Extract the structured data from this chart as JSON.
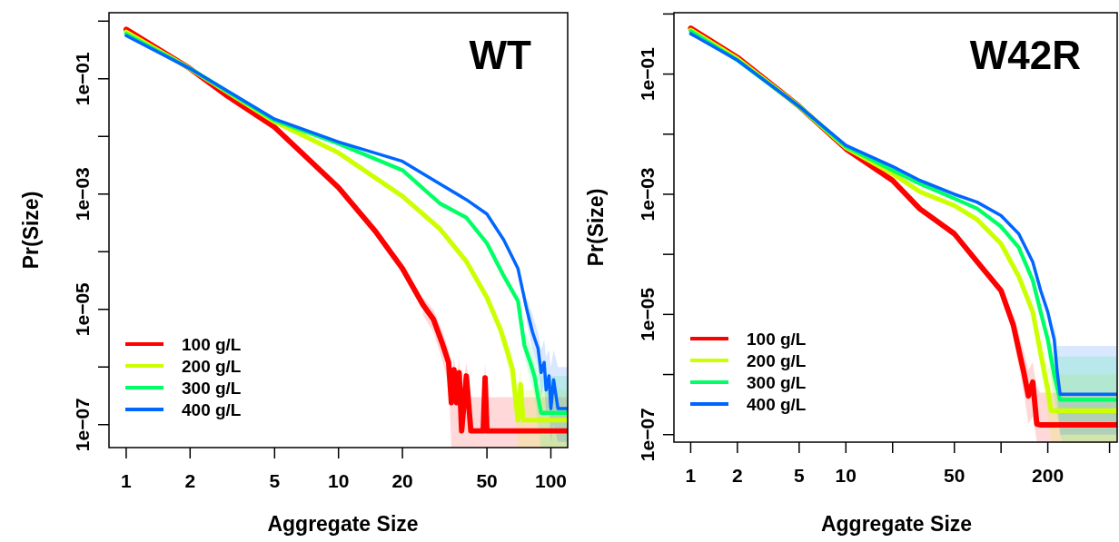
{
  "chart_data": [
    {
      "type": "line",
      "title": "WT",
      "xlabel": "Aggregate Size",
      "ylabel": "Pr(Size)",
      "log": "xy",
      "legend": "bottom left",
      "xlim": [
        0.83,
        120
      ],
      "ylim": [
        4e-08,
        1.4
      ],
      "xticks": [
        1,
        2,
        5,
        10,
        20,
        50,
        100
      ],
      "yticks": [
        {
          "value": 1,
          "label": null
        },
        {
          "value": 0.1,
          "label": "1e−01"
        },
        {
          "value": 0.01,
          "label": null
        },
        {
          "value": 0.001,
          "label": "1e−03"
        },
        {
          "value": 0.0001,
          "label": null
        },
        {
          "value": 1e-05,
          "label": "1e−05"
        },
        {
          "value": 1e-06,
          "label": null
        },
        {
          "value": 1e-07,
          "label": "1e−07"
        }
      ],
      "series": [
        {
          "name": "100 g/L",
          "color": "#ff0000",
          "x": [
            1,
            2,
            3,
            5,
            7,
            10,
            15,
            20,
            25,
            28,
            31,
            33,
            34,
            35,
            36,
            37,
            38,
            40,
            42,
            48,
            49,
            50,
            120
          ],
          "values": [
            0.72,
            0.15,
            0.05,
            0.0145,
            0.0045,
            0.0013,
            0.00022,
            5.1e-05,
            1.2e-05,
            6.7e-06,
            2.4e-06,
            1.2e-06,
            2.4e-07,
            9e-07,
            2.4e-07,
            8e-07,
            7.8e-08,
            7e-07,
            7.8e-08,
            7.8e-08,
            6.5e-07,
            7.8e-08,
            7.8e-08
          ],
          "lower": [
            null,
            null,
            null,
            null,
            null,
            null,
            null,
            null,
            8e-06,
            4e-06,
            1.2e-06,
            5e-07,
            4e-08,
            4e-08,
            4e-08,
            4e-08,
            4e-08,
            4e-08,
            4e-08,
            4e-08,
            4e-08,
            4e-08,
            4e-08
          ],
          "upper": [
            null,
            null,
            null,
            null,
            null,
            null,
            null,
            null,
            1.6e-05,
            1e-05,
            4e-06,
            2e-06,
            6e-07,
            1.5e-06,
            6e-07,
            1.4e-06,
            3e-07,
            1.2e-06,
            3e-07,
            3e-07,
            1.2e-06,
            3e-07,
            3e-07
          ]
        },
        {
          "name": "200 g/L",
          "color": "#ccff00",
          "x": [
            1,
            2,
            5,
            10,
            20,
            30,
            40,
            50,
            58,
            62,
            66,
            68,
            70,
            72,
            74,
            76,
            120
          ],
          "values": [
            0.65,
            0.15,
            0.018,
            0.0052,
            0.00092,
            0.00025,
            6.8e-05,
            1.6e-05,
            4.4e-06,
            2e-06,
            9e-07,
            3e-07,
            1.2e-07,
            5e-07,
            1.2e-07,
            1.2e-07,
            1.2e-07
          ],
          "lower": [
            null,
            null,
            null,
            null,
            null,
            null,
            null,
            null,
            3e-06,
            1.2e-06,
            4e-07,
            1e-07,
            4e-08,
            4e-08,
            4e-08,
            4e-08,
            4e-08
          ],
          "upper": [
            null,
            null,
            null,
            null,
            null,
            null,
            null,
            null,
            6e-06,
            3e-06,
            1.6e-06,
            8e-07,
            5e-07,
            1e-06,
            4e-07,
            4e-07,
            4e-07
          ]
        },
        {
          "name": "300 g/L",
          "color": "#00ff66",
          "x": [
            1,
            2,
            5,
            10,
            20,
            30,
            40,
            50,
            60,
            70,
            75,
            80,
            84,
            87,
            90,
            95,
            120
          ],
          "values": [
            0.6,
            0.15,
            0.019,
            0.0075,
            0.0026,
            0.00069,
            0.00039,
            0.00014,
            3.8e-05,
            1.4e-05,
            2.4e-06,
            1.2e-06,
            6.6e-07,
            3e-07,
            1.6e-07,
            1.6e-07,
            1.6e-07
          ],
          "lower": [
            null,
            null,
            null,
            null,
            null,
            null,
            null,
            null,
            null,
            1e-05,
            1.5e-06,
            6e-07,
            3e-07,
            1e-07,
            4e-08,
            4e-08,
            4e-08
          ],
          "upper": [
            null,
            null,
            null,
            null,
            null,
            null,
            null,
            null,
            null,
            2e-05,
            4e-06,
            2.5e-06,
            1.5e-06,
            1e-06,
            7e-07,
            7e-07,
            7e-07
          ]
        },
        {
          "name": "400 g/L",
          "color": "#0066ff",
          "x": [
            1,
            2,
            5,
            10,
            20,
            30,
            40,
            50,
            60,
            70,
            77,
            82,
            87,
            90,
            93,
            95,
            98,
            100,
            103,
            108,
            120
          ],
          "values": [
            0.56,
            0.15,
            0.02,
            0.008,
            0.0037,
            0.0015,
            0.0008,
            0.00045,
            0.00016,
            5.1e-05,
            1e-05,
            4e-06,
            2.1e-06,
            8e-07,
            1.2e-06,
            4e-07,
            7e-07,
            1.9e-07,
            6e-07,
            1.9e-07,
            1.9e-07
          ],
          "lower": [
            null,
            null,
            null,
            null,
            null,
            null,
            null,
            null,
            null,
            null,
            6e-06,
            2e-06,
            1e-06,
            3e-07,
            5e-07,
            1.5e-07,
            2e-07,
            5e-08,
            1e-07,
            5e-08,
            5e-08
          ],
          "upper": [
            null,
            null,
            null,
            null,
            null,
            null,
            null,
            null,
            null,
            null,
            1.6e-05,
            8e-06,
            4e-06,
            2e-06,
            3e-06,
            1.5e-06,
            2e-06,
            1e-06,
            2e-06,
            1e-06,
            1e-06
          ]
        }
      ]
    },
    {
      "type": "line",
      "title": "W42R",
      "xlabel": "Aggregate Size",
      "ylabel": "Pr(Size)",
      "log": "xy",
      "legend": "bottom left",
      "xlim": [
        0.78,
        560
      ],
      "ylim": [
        7.5e-08,
        1.05
      ],
      "xticks": [
        1,
        2,
        5,
        10,
        {
          "value": 20,
          "label": null
        },
        50,
        {
          "value": 100,
          "label": null
        },
        200,
        {
          "value": 500,
          "label": null
        }
      ],
      "yticks": [
        {
          "value": 1,
          "label": null
        },
        {
          "value": 0.1,
          "label": "1e−01"
        },
        {
          "value": 0.01,
          "label": null
        },
        {
          "value": 0.001,
          "label": "1e−03"
        },
        {
          "value": 0.0001,
          "label": null
        },
        {
          "value": 1e-05,
          "label": "1e−05"
        },
        {
          "value": 1e-06,
          "label": null
        },
        {
          "value": 1e-07,
          "label": "1e−07"
        }
      ],
      "series": [
        {
          "name": "100 g/L",
          "color": "#ff0000",
          "x": [
            1,
            2,
            5,
            10,
            20,
            30,
            50,
            70,
            100,
            120,
            140,
            150,
            160,
            170,
            180,
            560
          ],
          "values": [
            0.58,
            0.19,
            0.029,
            0.0057,
            0.0017,
            0.00057,
            0.00022,
            7.6e-05,
            2.5e-05,
            6.6e-06,
            1.1e-06,
            4.4e-07,
            7.5e-07,
            1.5e-07,
            1.45e-07,
            1.45e-07
          ],
          "lower": [
            null,
            null,
            null,
            null,
            null,
            null,
            null,
            null,
            null,
            4e-06,
            5e-07,
            1.5e-07,
            2e-07,
            7.5e-08,
            7.5e-08,
            7.5e-08
          ],
          "upper": [
            null,
            null,
            null,
            null,
            null,
            null,
            null,
            null,
            null,
            1e-05,
            2.5e-06,
            1.2e-06,
            1.6e-06,
            6e-07,
            5e-07,
            5e-07
          ]
        },
        {
          "name": "200 g/L",
          "color": "#ccff00",
          "x": [
            1,
            2,
            5,
            10,
            20,
            30,
            50,
            70,
            100,
            130,
            160,
            180,
            200,
            210,
            560
          ],
          "values": [
            0.54,
            0.18,
            0.029,
            0.006,
            0.0022,
            0.0011,
            0.00065,
            0.00038,
            0.00015,
            4.3e-05,
            1.1e-05,
            2.2e-06,
            5.6e-07,
            2.5e-07,
            2.5e-07
          ],
          "lower": [
            null,
            null,
            null,
            null,
            null,
            null,
            null,
            null,
            null,
            null,
            null,
            1.2e-06,
            2e-07,
            7.5e-08,
            7.5e-08
          ],
          "upper": [
            null,
            null,
            null,
            null,
            null,
            null,
            null,
            null,
            null,
            null,
            null,
            4e-06,
            1.5e-06,
            1e-06,
            1e-06
          ]
        },
        {
          "name": "300 g/L",
          "color": "#00ff66",
          "x": [
            1,
            2,
            5,
            10,
            20,
            30,
            50,
            70,
            100,
            130,
            160,
            180,
            200,
            220,
            240,
            250,
            560
          ],
          "values": [
            0.52,
            0.17,
            0.029,
            0.0062,
            0.0025,
            0.0015,
            0.00085,
            0.00058,
            0.00029,
            0.00013,
            3.7e-05,
            1.1e-05,
            3.8e-06,
            9.8e-07,
            3.8e-07,
            3.8e-07,
            3.8e-07
          ],
          "lower": [
            null,
            null,
            null,
            null,
            null,
            null,
            null,
            null,
            null,
            null,
            null,
            null,
            2e-06,
            4e-07,
            1e-07,
            7.5e-08,
            7.5e-08
          ],
          "upper": [
            null,
            null,
            null,
            null,
            null,
            null,
            null,
            null,
            null,
            null,
            null,
            null,
            6e-06,
            2e-06,
            2e-06,
            2e-06,
            2e-06
          ]
        },
        {
          "name": "400 g/L",
          "color": "#0066ff",
          "x": [
            1,
            2,
            5,
            10,
            20,
            30,
            50,
            70,
            100,
            130,
            160,
            180,
            200,
            220,
            230,
            240,
            560
          ],
          "values": [
            0.47,
            0.17,
            0.029,
            0.0065,
            0.0029,
            0.0017,
            0.001,
            0.00074,
            0.00044,
            0.00022,
            7.5e-05,
            2.5e-05,
            1.1e-05,
            3.8e-06,
            1.1e-06,
            4.7e-07,
            4.7e-07
          ],
          "lower": [
            null,
            null,
            null,
            null,
            null,
            null,
            null,
            null,
            null,
            null,
            null,
            null,
            null,
            2e-06,
            4e-07,
            1e-07,
            1e-07
          ],
          "upper": [
            null,
            null,
            null,
            null,
            null,
            null,
            null,
            null,
            null,
            null,
            null,
            null,
            null,
            8e-06,
            3e-06,
            3e-06,
            3e-06
          ]
        }
      ]
    }
  ]
}
